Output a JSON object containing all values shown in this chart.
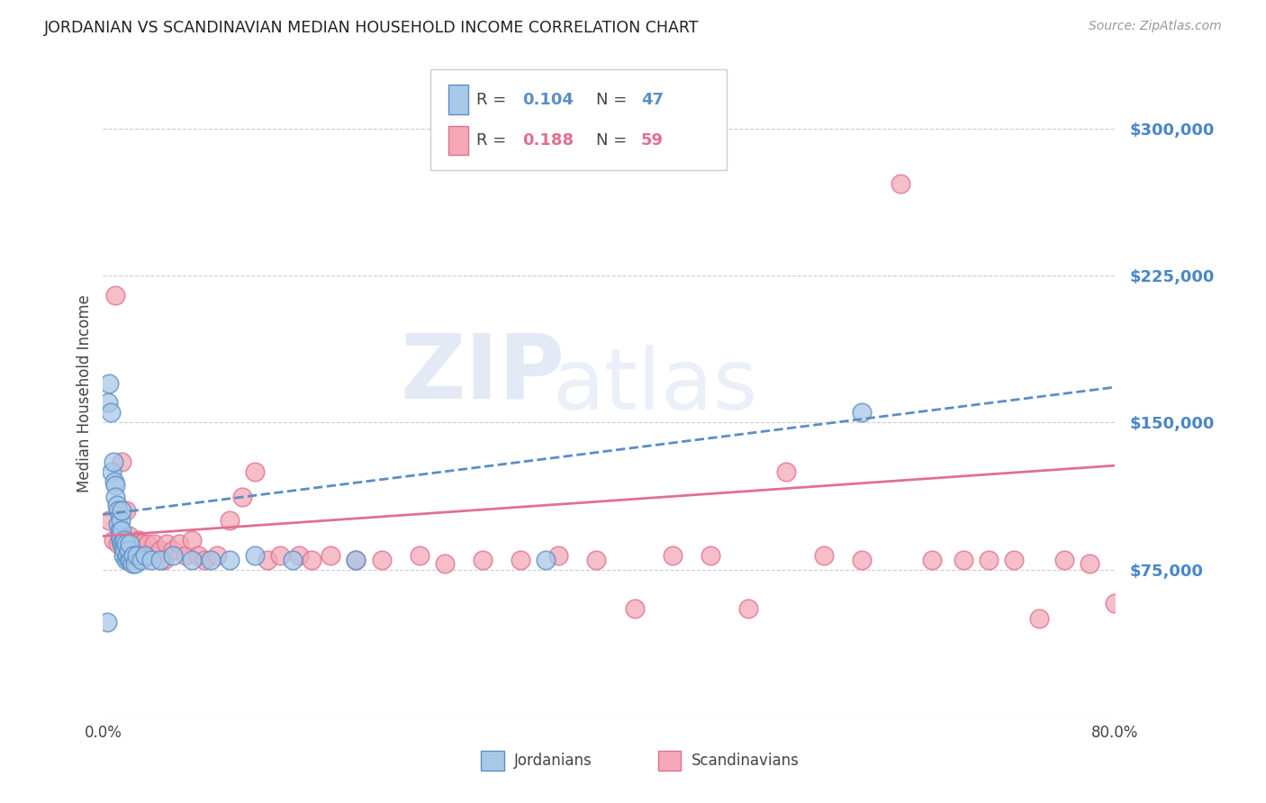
{
  "title": "JORDANIAN VS SCANDINAVIAN MEDIAN HOUSEHOLD INCOME CORRELATION CHART",
  "source": "Source: ZipAtlas.com",
  "ylabel": "Median Household Income",
  "yticks": [
    0,
    75000,
    150000,
    225000,
    300000
  ],
  "ytick_labels": [
    "",
    "$75,000",
    "$150,000",
    "$225,000",
    "$300,000"
  ],
  "ymin": 0,
  "ymax": 330000,
  "xmin": 0.0,
  "xmax": 0.8,
  "legend_r1": "0.104",
  "legend_n1": "47",
  "legend_r2": "0.188",
  "legend_n2": "59",
  "legend_label1": "Jordanians",
  "legend_label2": "Scandinavians",
  "blue_fill": "#a8c8e8",
  "blue_edge": "#5b8ec4",
  "pink_fill": "#f4a8b8",
  "pink_edge": "#e07090",
  "blue_line": "#5b8ec4",
  "pink_line": "#e07090",
  "ytick_color": "#4a86c8",
  "background_color": "#ffffff",
  "grid_color": "#cccccc",
  "jordanians_x": [
    0.003,
    0.004,
    0.005,
    0.006,
    0.007,
    0.008,
    0.009,
    0.01,
    0.01,
    0.011,
    0.012,
    0.012,
    0.013,
    0.013,
    0.014,
    0.014,
    0.015,
    0.015,
    0.015,
    0.016,
    0.016,
    0.017,
    0.017,
    0.018,
    0.018,
    0.019,
    0.02,
    0.02,
    0.021,
    0.022,
    0.023,
    0.024,
    0.025,
    0.027,
    0.03,
    0.033,
    0.038,
    0.045,
    0.055,
    0.07,
    0.085,
    0.1,
    0.12,
    0.15,
    0.2,
    0.35,
    0.6
  ],
  "jordanians_y": [
    48000,
    160000,
    170000,
    155000,
    125000,
    130000,
    120000,
    118000,
    112000,
    108000,
    105000,
    98000,
    95000,
    92000,
    100000,
    90000,
    88000,
    95000,
    105000,
    88000,
    82000,
    90000,
    85000,
    80000,
    88000,
    82000,
    80000,
    85000,
    88000,
    80000,
    78000,
    82000,
    78000,
    82000,
    80000,
    82000,
    80000,
    80000,
    82000,
    80000,
    80000,
    80000,
    82000,
    80000,
    80000,
    80000,
    155000
  ],
  "scandinavians_x": [
    0.005,
    0.008,
    0.01,
    0.012,
    0.015,
    0.016,
    0.018,
    0.02,
    0.022,
    0.025,
    0.028,
    0.03,
    0.032,
    0.035,
    0.038,
    0.04,
    0.042,
    0.045,
    0.048,
    0.05,
    0.055,
    0.06,
    0.065,
    0.07,
    0.075,
    0.08,
    0.09,
    0.1,
    0.11,
    0.12,
    0.13,
    0.14,
    0.155,
    0.165,
    0.18,
    0.2,
    0.22,
    0.25,
    0.27,
    0.3,
    0.33,
    0.36,
    0.39,
    0.42,
    0.45,
    0.48,
    0.51,
    0.54,
    0.57,
    0.6,
    0.63,
    0.655,
    0.68,
    0.7,
    0.72,
    0.74,
    0.76,
    0.78,
    0.8
  ],
  "scandinavians_y": [
    100000,
    90000,
    215000,
    88000,
    130000,
    88000,
    105000,
    92000,
    88000,
    85000,
    90000,
    88000,
    82000,
    88000,
    82000,
    88000,
    82000,
    85000,
    80000,
    88000,
    85000,
    88000,
    82000,
    90000,
    82000,
    80000,
    82000,
    100000,
    112000,
    125000,
    80000,
    82000,
    82000,
    80000,
    82000,
    80000,
    80000,
    82000,
    78000,
    80000,
    80000,
    82000,
    80000,
    55000,
    82000,
    82000,
    55000,
    125000,
    82000,
    80000,
    272000,
    80000,
    80000,
    80000,
    80000,
    50000,
    80000,
    78000,
    58000
  ],
  "blue_trendline_x": [
    0.0,
    0.8
  ],
  "blue_trendline_y": [
    103000,
    168000
  ],
  "pink_trendline_x": [
    0.0,
    0.8
  ],
  "pink_trendline_y": [
    92000,
    128000
  ]
}
